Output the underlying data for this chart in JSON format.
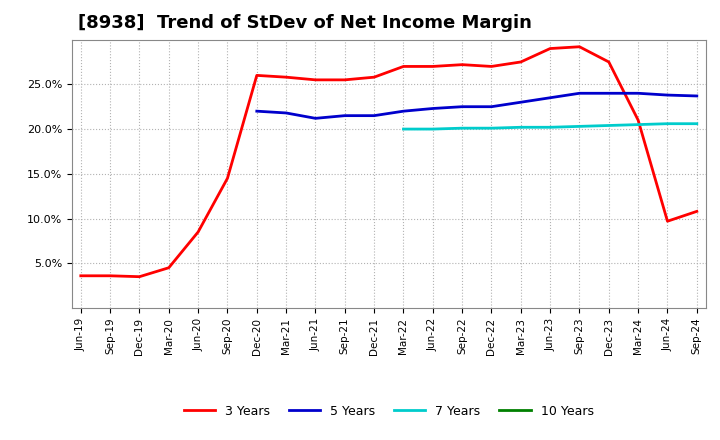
{
  "title": "[8938]  Trend of StDev of Net Income Margin",
  "title_fontsize": 13,
  "background_color": "#ffffff",
  "grid_color": "#aaaaaa",
  "x_labels": [
    "Jun-19",
    "Sep-19",
    "Dec-19",
    "Mar-20",
    "Jun-20",
    "Sep-20",
    "Dec-20",
    "Mar-21",
    "Jun-21",
    "Sep-21",
    "Dec-21",
    "Mar-22",
    "Jun-22",
    "Sep-22",
    "Dec-22",
    "Mar-23",
    "Jun-23",
    "Sep-23",
    "Dec-23",
    "Mar-24",
    "Jun-24",
    "Sep-24"
  ],
  "series": [
    {
      "name": "3 Years",
      "color": "#ff0000",
      "values": [
        3.6,
        3.6,
        3.5,
        4.5,
        8.5,
        14.5,
        26.0,
        25.8,
        25.5,
        25.5,
        25.8,
        27.0,
        27.0,
        27.2,
        27.0,
        27.5,
        29.0,
        29.2,
        27.5,
        21.0,
        9.7,
        10.8
      ]
    },
    {
      "name": "5 Years",
      "color": "#0000cc",
      "values": [
        null,
        null,
        null,
        null,
        null,
        null,
        22.0,
        21.8,
        21.2,
        21.5,
        21.5,
        22.0,
        22.3,
        22.5,
        22.5,
        23.0,
        23.5,
        24.0,
        24.0,
        24.0,
        23.8,
        23.7
      ]
    },
    {
      "name": "7 Years",
      "color": "#00cccc",
      "values": [
        null,
        null,
        null,
        null,
        null,
        null,
        null,
        null,
        null,
        null,
        null,
        20.0,
        20.0,
        20.1,
        20.1,
        20.2,
        20.2,
        20.3,
        20.4,
        20.5,
        20.6,
        20.6
      ]
    },
    {
      "name": "10 Years",
      "color": "#008000",
      "values": [
        null,
        null,
        null,
        null,
        null,
        null,
        null,
        null,
        null,
        null,
        null,
        null,
        null,
        null,
        null,
        null,
        null,
        null,
        null,
        null,
        null,
        null
      ]
    }
  ],
  "ylim": [
    0,
    30
  ],
  "yticks": [
    5.0,
    10.0,
    15.0,
    20.0,
    25.0
  ],
  "ytick_labels": [
    "5.0%",
    "10.0%",
    "15.0%",
    "20.0%",
    "25.0%"
  ]
}
